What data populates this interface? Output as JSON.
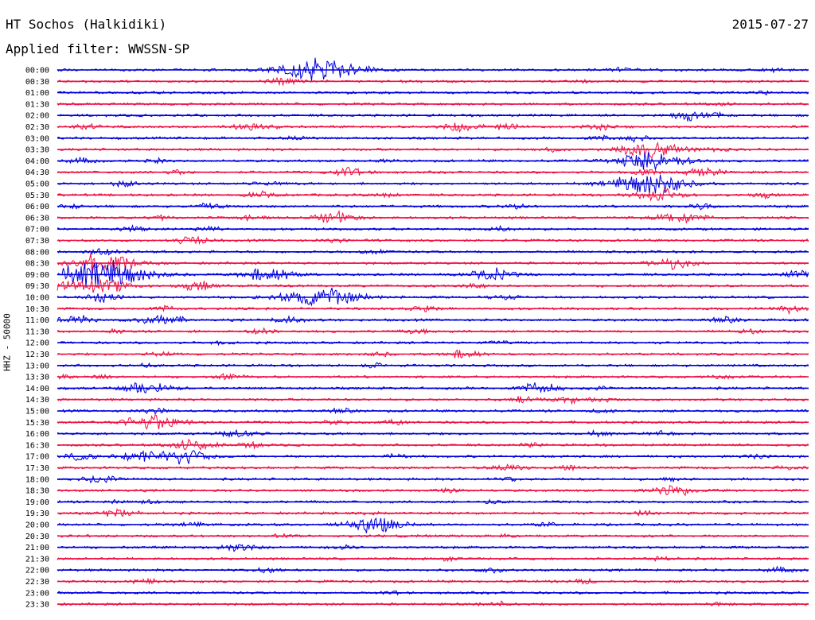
{
  "header": {
    "station": "HT Sochos (Halkidiki)",
    "date": "2015-07-27",
    "filter": "Applied filter: WWSSN-SP"
  },
  "chart_data": {
    "type": "line",
    "ylabel": "HHZ - 50000",
    "colors": {
      "even": "#0000dd",
      "odd": "#ee1144"
    },
    "rows": [
      {
        "time": "00:00",
        "events": [
          [
            35,
            18
          ],
          [
            75,
            4
          ],
          [
            95,
            3
          ]
        ]
      },
      {
        "time": "00:30",
        "events": [
          [
            30,
            5
          ],
          [
            70,
            2
          ]
        ]
      },
      {
        "time": "01:00",
        "events": [
          [
            94,
            2
          ]
        ]
      },
      {
        "time": "01:30",
        "events": [
          [
            88,
            2
          ]
        ]
      },
      {
        "time": "02:00",
        "events": [
          [
            84,
            6
          ],
          [
            88,
            3
          ]
        ]
      },
      {
        "time": "02:30",
        "events": [
          [
            4,
            4
          ],
          [
            25,
            4
          ],
          [
            27,
            5
          ],
          [
            54,
            7
          ],
          [
            60,
            4
          ],
          [
            72,
            4
          ]
        ]
      },
      {
        "time": "03:00",
        "events": [
          [
            32,
            3
          ],
          [
            72,
            4
          ],
          [
            77,
            4
          ]
        ]
      },
      {
        "time": "03:30",
        "events": [
          [
            66,
            3
          ],
          [
            79,
            12
          ],
          [
            88,
            3
          ]
        ]
      },
      {
        "time": "04:00",
        "events": [
          [
            3,
            4
          ],
          [
            13,
            3
          ],
          [
            44,
            2
          ],
          [
            79,
            14
          ]
        ]
      },
      {
        "time": "04:30",
        "events": [
          [
            16,
            3
          ],
          [
            39,
            6
          ],
          [
            78,
            4
          ],
          [
            86,
            6
          ]
        ]
      },
      {
        "time": "05:00",
        "events": [
          [
            9,
            4
          ],
          [
            28,
            3
          ],
          [
            79,
            16
          ]
        ]
      },
      {
        "time": "05:30",
        "events": [
          [
            27,
            4
          ],
          [
            44,
            3
          ],
          [
            80,
            9
          ],
          [
            94,
            3
          ]
        ]
      },
      {
        "time": "06:00",
        "events": [
          [
            2,
            3
          ],
          [
            20,
            4
          ],
          [
            61,
            3
          ],
          [
            86,
            4
          ]
        ]
      },
      {
        "time": "06:30",
        "events": [
          [
            14,
            3
          ],
          [
            26,
            4
          ],
          [
            37,
            8
          ],
          [
            83,
            9
          ]
        ]
      },
      {
        "time": "07:00",
        "events": [
          [
            10,
            4
          ],
          [
            20,
            4
          ],
          [
            59,
            3
          ]
        ]
      },
      {
        "time": "07:30",
        "events": [
          [
            18,
            6
          ],
          [
            37,
            3
          ]
        ]
      },
      {
        "time": "08:00",
        "events": [
          [
            6,
            5
          ],
          [
            42,
            3
          ]
        ]
      },
      {
        "time": "08:30",
        "events": [
          [
            6,
            14
          ],
          [
            82,
            8
          ]
        ]
      },
      {
        "time": "09:00",
        "events": [
          [
            6,
            20
          ],
          [
            28,
            10
          ],
          [
            58,
            8
          ],
          [
            99,
            6
          ]
        ]
      },
      {
        "time": "09:30",
        "events": [
          [
            0,
            6
          ],
          [
            6,
            10
          ],
          [
            19,
            6
          ],
          [
            56,
            4
          ]
        ]
      },
      {
        "time": "10:00",
        "events": [
          [
            6,
            6
          ],
          [
            35,
            16
          ],
          [
            60,
            3
          ]
        ]
      },
      {
        "time": "10:30",
        "events": [
          [
            14,
            4
          ],
          [
            49,
            4
          ],
          [
            97,
            5
          ]
        ]
      },
      {
        "time": "11:00",
        "events": [
          [
            2,
            7
          ],
          [
            14,
            8
          ],
          [
            31,
            5
          ],
          [
            89,
            4
          ]
        ]
      },
      {
        "time": "11:30",
        "events": [
          [
            8,
            3
          ],
          [
            27,
            4
          ],
          [
            48,
            4
          ],
          [
            92,
            3
          ]
        ]
      },
      {
        "time": "12:00",
        "events": [
          [
            22,
            2
          ],
          [
            59,
            3
          ]
        ]
      },
      {
        "time": "12:30",
        "events": [
          [
            14,
            3
          ],
          [
            43,
            3
          ],
          [
            54,
            6
          ]
        ]
      },
      {
        "time": "13:00",
        "events": [
          [
            12,
            2
          ],
          [
            42,
            3
          ]
        ]
      },
      {
        "time": "13:30",
        "events": [
          [
            1,
            3
          ],
          [
            6,
            3
          ],
          [
            23,
            4
          ],
          [
            88,
            3
          ]
        ]
      },
      {
        "time": "14:00",
        "events": [
          [
            12,
            9
          ],
          [
            64,
            8
          ],
          [
            72,
            3
          ]
        ]
      },
      {
        "time": "14:30",
        "events": [
          [
            62,
            4
          ],
          [
            68,
            5
          ],
          [
            72,
            3
          ]
        ]
      },
      {
        "time": "15:00",
        "events": [
          [
            13,
            4
          ],
          [
            38,
            3
          ],
          [
            73,
            3
          ]
        ]
      },
      {
        "time": "15:30",
        "events": [
          [
            13,
            12
          ],
          [
            37,
            3
          ],
          [
            45,
            3
          ]
        ]
      },
      {
        "time": "16:00",
        "events": [
          [
            24,
            6
          ],
          [
            72,
            3
          ],
          [
            80,
            3
          ]
        ]
      },
      {
        "time": "16:30",
        "events": [
          [
            18,
            8
          ],
          [
            26,
            4
          ],
          [
            63,
            3
          ]
        ]
      },
      {
        "time": "17:00",
        "events": [
          [
            3,
            5
          ],
          [
            11,
            8
          ],
          [
            17,
            10
          ],
          [
            45,
            3
          ],
          [
            93,
            3
          ]
        ]
      },
      {
        "time": "17:30",
        "events": [
          [
            60,
            5
          ],
          [
            68,
            3
          ],
          [
            97,
            3
          ]
        ]
      },
      {
        "time": "18:00",
        "events": [
          [
            6,
            6
          ],
          [
            60,
            3
          ],
          [
            82,
            2
          ]
        ]
      },
      {
        "time": "18:30",
        "events": [
          [
            52,
            3
          ],
          [
            82,
            8
          ]
        ]
      },
      {
        "time": "19:00",
        "events": [
          [
            8,
            2
          ],
          [
            12,
            3
          ],
          [
            58,
            3
          ]
        ]
      },
      {
        "time": "19:30",
        "events": [
          [
            8,
            6
          ],
          [
            42,
            3
          ],
          [
            78,
            3
          ]
        ]
      },
      {
        "time": "20:00",
        "events": [
          [
            18,
            3
          ],
          [
            42,
            12
          ],
          [
            65,
            3
          ]
        ]
      },
      {
        "time": "20:30",
        "events": [
          [
            30,
            2
          ],
          [
            60,
            2
          ]
        ]
      },
      {
        "time": "21:00",
        "events": [
          [
            24,
            6
          ],
          [
            38,
            3
          ]
        ]
      },
      {
        "time": "21:30",
        "events": [
          [
            52,
            3
          ],
          [
            80,
            3
          ]
        ]
      },
      {
        "time": "22:00",
        "events": [
          [
            28,
            4
          ],
          [
            58,
            3
          ],
          [
            96,
            4
          ]
        ]
      },
      {
        "time": "22:30",
        "events": [
          [
            12,
            4
          ],
          [
            70,
            3
          ]
        ]
      },
      {
        "time": "23:00",
        "events": [
          [
            45,
            2
          ]
        ]
      },
      {
        "time": "23:30",
        "events": [
          [
            58,
            4
          ],
          [
            88,
            2
          ]
        ]
      }
    ]
  }
}
